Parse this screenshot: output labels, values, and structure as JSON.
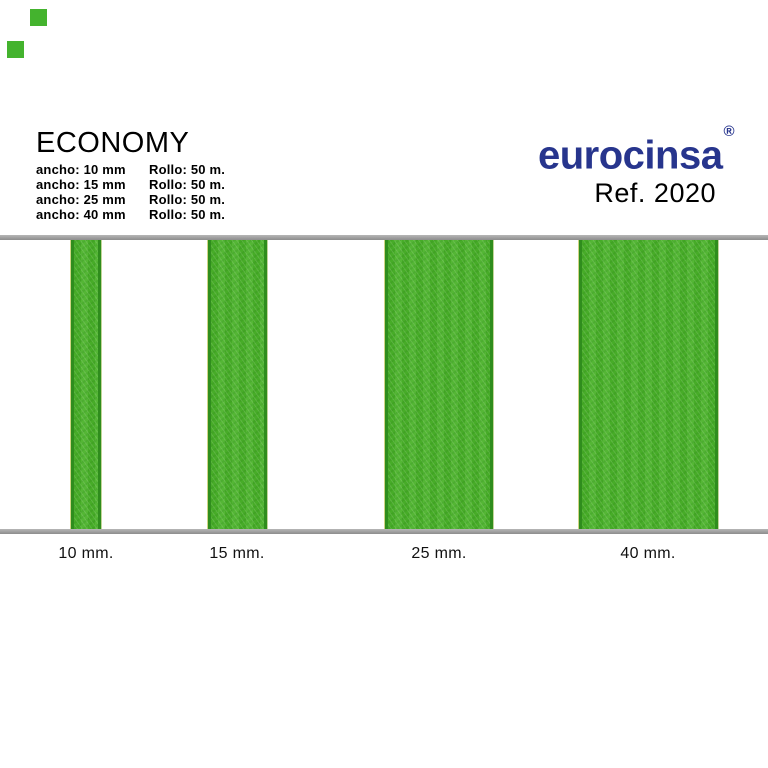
{
  "page": {
    "background_color": "#ffffff"
  },
  "swatches": {
    "color": "#44b32e",
    "count": 2
  },
  "header": {
    "title": "ECONOMY",
    "specs": [
      {
        "ancho": "ancho: 10 mm",
        "rollo": "Rollo: 50 m."
      },
      {
        "ancho": "ancho: 15 mm",
        "rollo": "Rollo: 50 m."
      },
      {
        "ancho": "ancho: 25 mm",
        "rollo": "Rollo: 50 m."
      },
      {
        "ancho": "ancho: 40 mm",
        "rollo": "Rollo: 50 m."
      }
    ]
  },
  "brand": {
    "logo_text": "eurocinsa",
    "registered_mark": "®",
    "reference": "Ref. 2020",
    "logo_color": "#27358d"
  },
  "ribbons": {
    "color": "#4bb22a",
    "edge_color": "#2f8d1d",
    "rail_color": "#9e9e9e",
    "items": [
      {
        "label": "10 mm.",
        "width_mm": 10
      },
      {
        "label": "15 mm.",
        "width_mm": 15
      },
      {
        "label": "25 mm.",
        "width_mm": 25
      },
      {
        "label": "40 mm.",
        "width_mm": 40
      }
    ]
  }
}
